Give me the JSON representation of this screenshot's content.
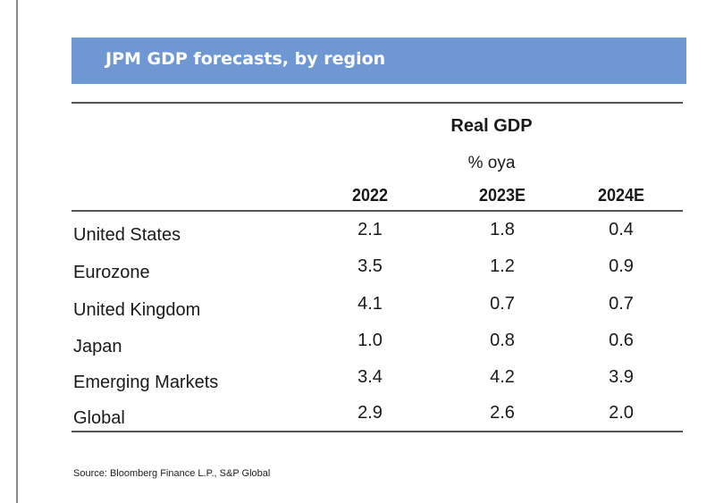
{
  "title": "JPM GDP forecasts, by region",
  "header": {
    "group": "Real GDP",
    "unit": "% oya",
    "columns": [
      "2022",
      "2023E",
      "2024E"
    ]
  },
  "rows": [
    {
      "region": "United States",
      "values": [
        "2.1",
        "1.8",
        "0.4"
      ]
    },
    {
      "region": "Eurozone",
      "values": [
        "3.5",
        "1.2",
        "0.9"
      ]
    },
    {
      "region": "United Kingdom",
      "values": [
        "4.1",
        "0.7",
        "0.7"
      ]
    },
    {
      "region": "Japan",
      "values": [
        "1.0",
        "0.8",
        "0.6"
      ]
    },
    {
      "region": "Emerging Markets",
      "values": [
        "3.4",
        "4.2",
        "3.9"
      ]
    },
    {
      "region": "Global",
      "values": [
        "2.9",
        "2.6",
        "2.0"
      ]
    }
  ],
  "source": "Source: Bloomberg Finance L.P., S&P Global",
  "colors": {
    "banner": "#6f98d3",
    "rule": "#555555"
  }
}
